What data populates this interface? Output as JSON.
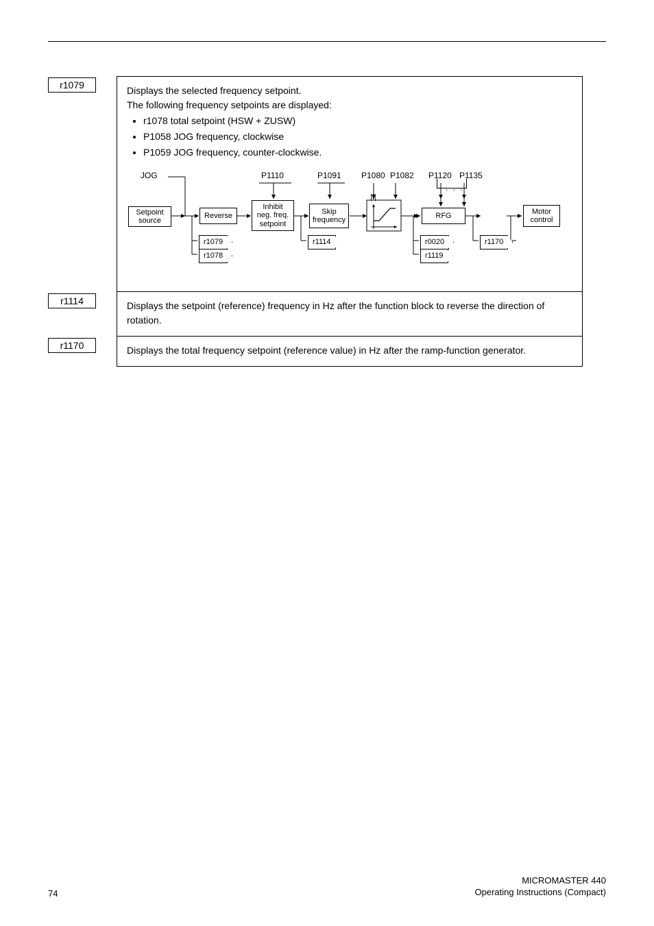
{
  "params": {
    "r1079": {
      "label": "r1079",
      "line1": "Displays the selected frequency setpoint.",
      "line2": "The following frequency setpoints are displayed:",
      "bullets": [
        "r1078  total setpoint (HSW + ZUSW)",
        "P1058  JOG frequency, clockwise",
        "P1059  JOG frequency, counter-clockwise."
      ]
    },
    "r1114": {
      "label": "r1114",
      "text": "Displays the setpoint (reference) frequency in Hz after the function block to reverse the direction of rotation."
    },
    "r1170": {
      "label": "r1170",
      "text": "Displays the total frequency setpoint (reference value) in Hz after the ramp-function generator."
    }
  },
  "diagram": {
    "top_labels": {
      "jog": "JOG",
      "p1110": "P1110",
      "p1091": "P1091",
      "p1080": "P1080",
      "p1082": "P1082",
      "p1120": "P1120",
      "p1135": "P1135"
    },
    "blocks": {
      "setpoint_source": "Setpoint\nsource",
      "reverse": "Reverse",
      "inhibit": "Inhibit\nneg. freq.\nsetpoint",
      "skip": "Skip\nfrequency",
      "abs_f": "|f|",
      "rfg": "RFG",
      "motor_control": "Motor\ncontrol"
    },
    "readouts": {
      "r1079": "r1079",
      "r1078": "r1078",
      "r1114": "r1114",
      "r0020": "r0020",
      "r1119": "r1119",
      "r1170": "r1170"
    },
    "colors": {
      "line": "#000000",
      "bg": "#ffffff"
    }
  },
  "footer": {
    "page_number": "74",
    "product": "MICROMASTER 440",
    "doc": "Operating Instructions (Compact)"
  }
}
